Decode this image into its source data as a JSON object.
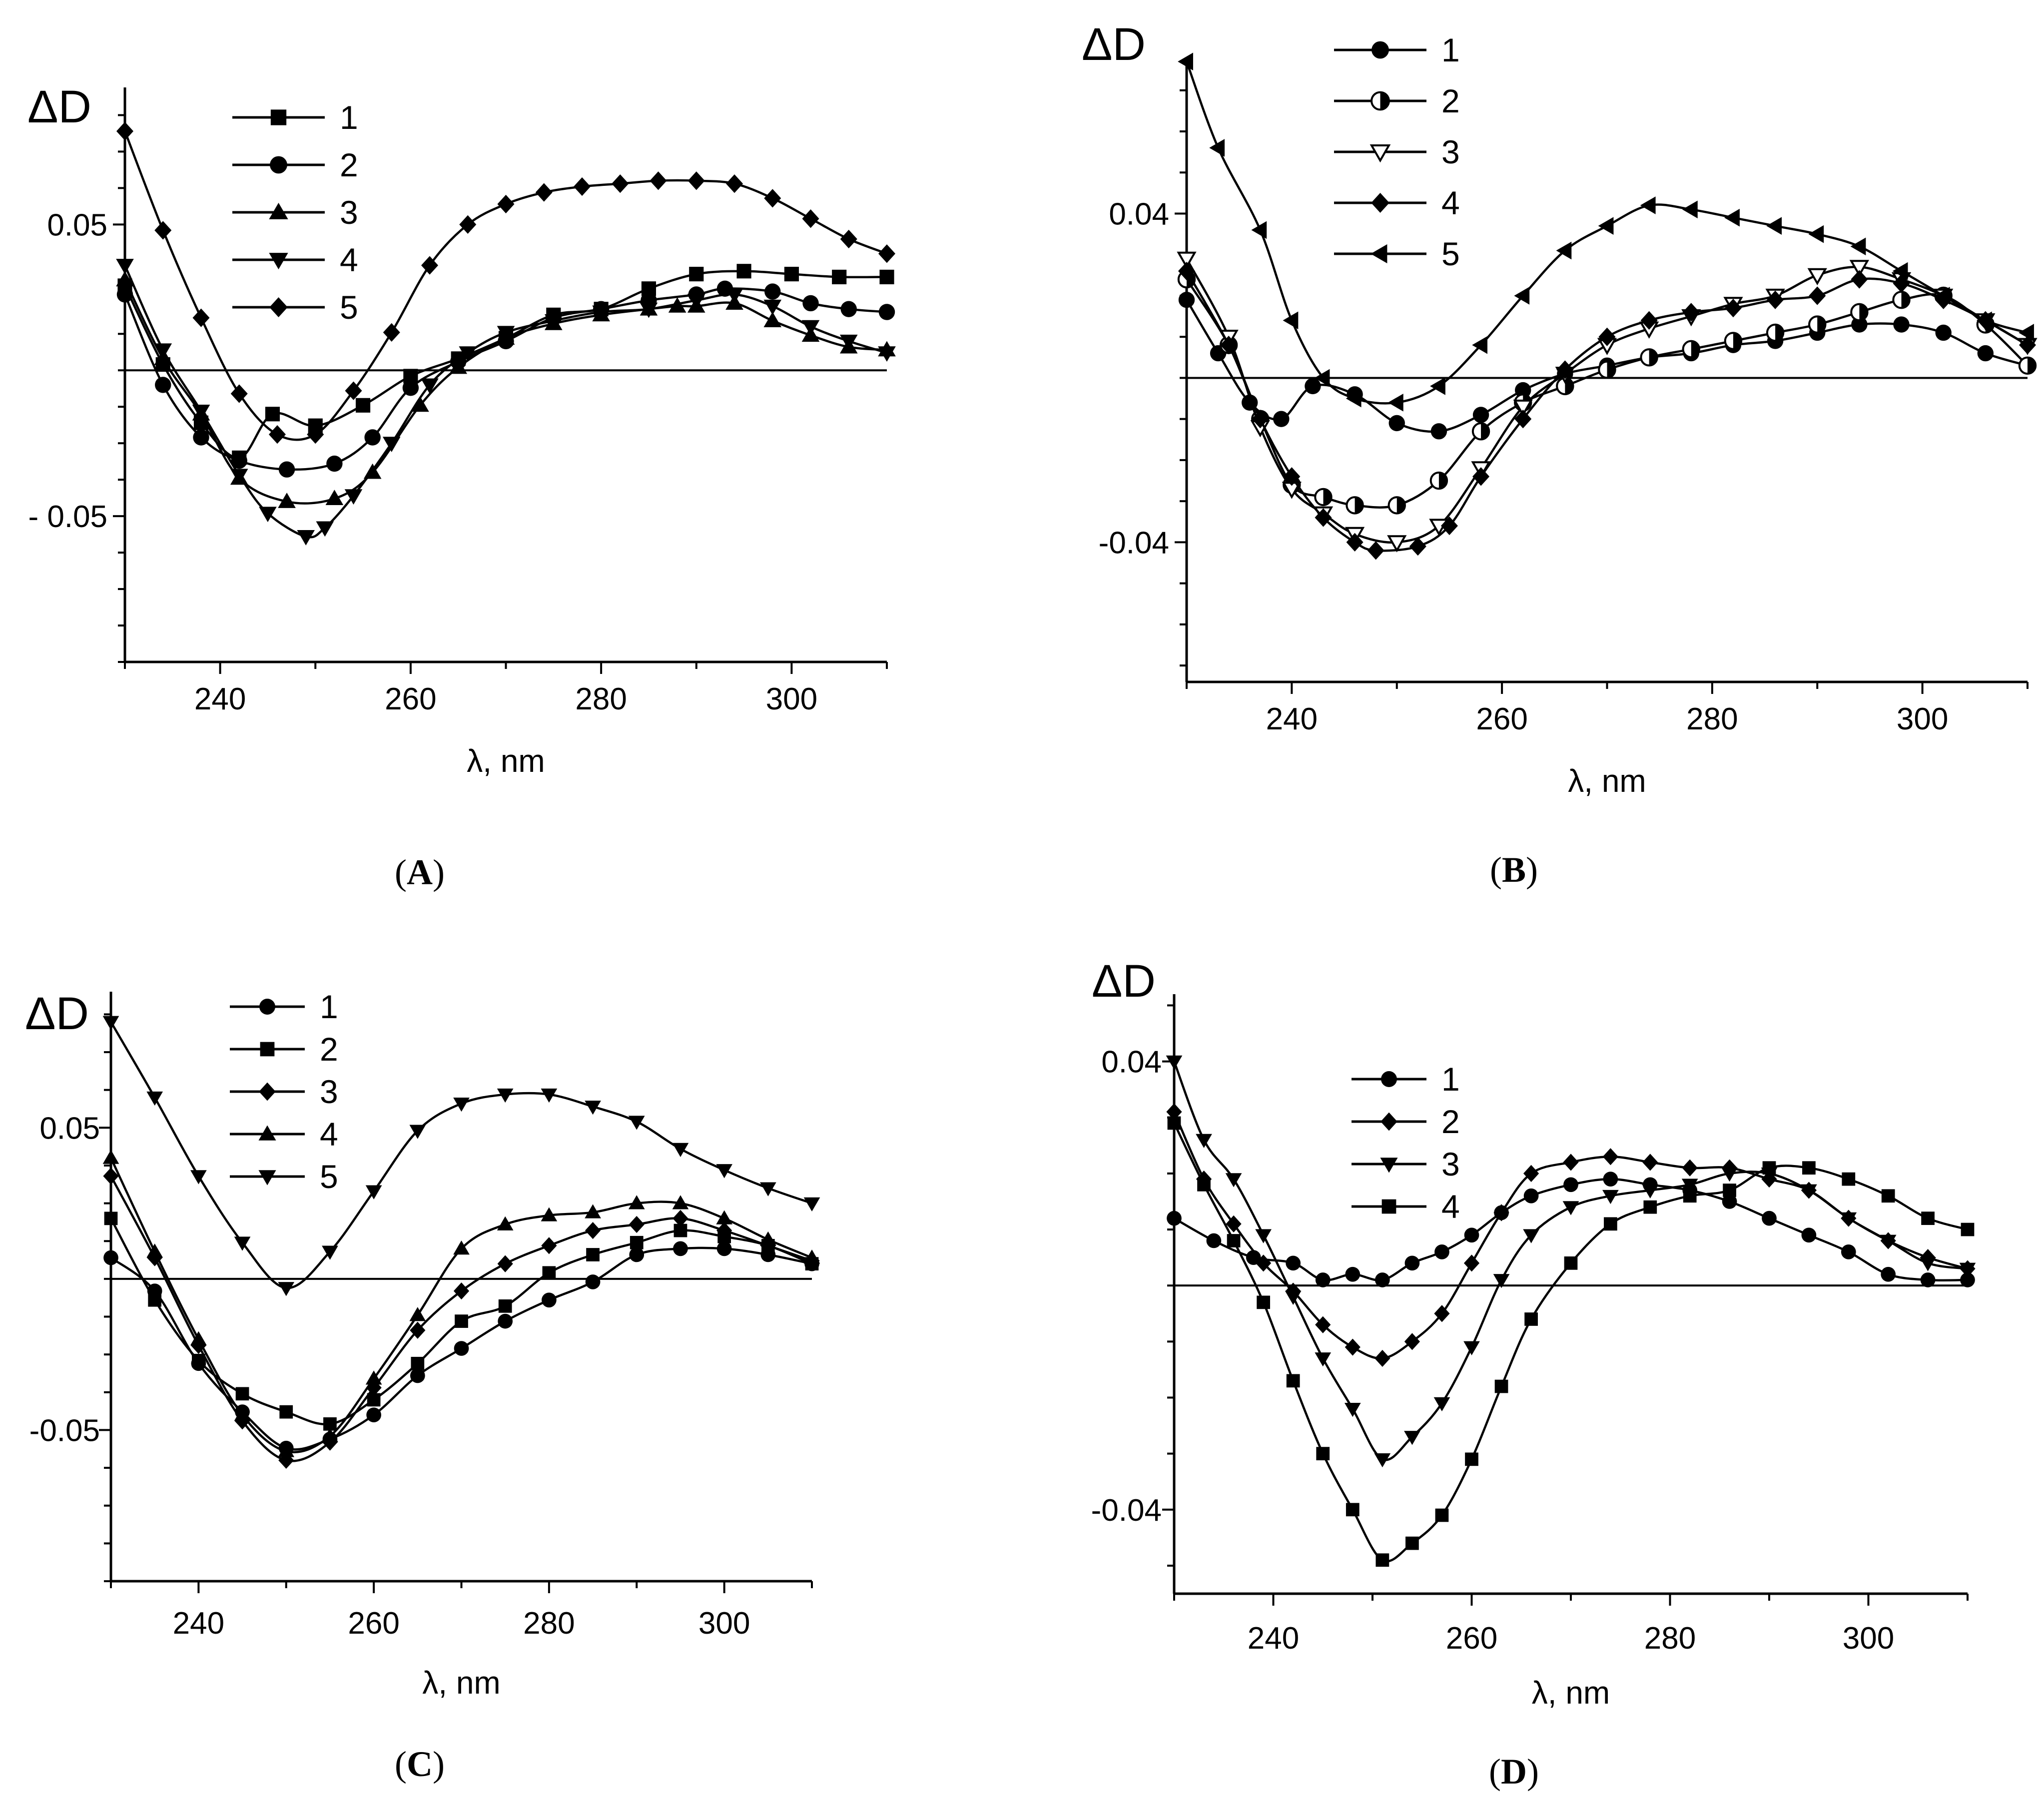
{
  "figure": {
    "colors": {
      "line": "#000000",
      "background": "#ffffff"
    }
  },
  "chart_data": [
    {
      "panel": "A",
      "caption": {
        "open": "(",
        "letter": "A",
        "close": ")"
      },
      "type": "line",
      "ylabel": "ΔD",
      "xlabel": "λ, nm",
      "xlim": [
        230,
        310
      ],
      "ylim": [
        -0.1,
        0.097
      ],
      "xticks": [
        240,
        260,
        280,
        300
      ],
      "yticks": [
        0.05,
        -0.05
      ],
      "ytick_labels": [
        "0.05",
        "- 0.05"
      ],
      "yminor_step": 0.0125,
      "baseline": 0,
      "legend": "top-left",
      "series": [
        {
          "name": "1",
          "marker": "square",
          "x": [
            230,
            234,
            238,
            242,
            245.5,
            250,
            255,
            260,
            265,
            270,
            275,
            280,
            285,
            290,
            295,
            300,
            305,
            310
          ],
          "y": [
            0.029,
            0.002,
            -0.018,
            -0.03,
            -0.015,
            -0.019,
            -0.012,
            -0.002,
            0.004,
            0.011,
            0.019,
            0.021,
            0.028,
            0.033,
            0.034,
            0.033,
            0.032,
            0.032
          ]
        },
        {
          "name": "2",
          "marker": "circle",
          "x": [
            230,
            234,
            238,
            242,
            247,
            252,
            256,
            260,
            265,
            270,
            275,
            280,
            285,
            290,
            293,
            298,
            302,
            306,
            310
          ],
          "y": [
            0.026,
            -0.005,
            -0.023,
            -0.031,
            -0.034,
            -0.032,
            -0.023,
            -0.006,
            0.003,
            0.01,
            0.018,
            0.021,
            0.024,
            0.026,
            0.028,
            0.027,
            0.023,
            0.021,
            0.02
          ]
        },
        {
          "name": "3",
          "marker": "triangle-up",
          "x": [
            230,
            234,
            238,
            242,
            247,
            252,
            256,
            261,
            265,
            270,
            275,
            280,
            285,
            288,
            290,
            294,
            298,
            302,
            306,
            310
          ],
          "y": [
            0.031,
            0.004,
            -0.015,
            -0.037,
            -0.045,
            -0.044,
            -0.035,
            -0.012,
            0.001,
            0.011,
            0.016,
            0.019,
            0.021,
            0.022,
            0.022,
            0.023,
            0.017,
            0.012,
            0.008,
            0.007
          ]
        },
        {
          "name": "4",
          "marker": "triangle-down",
          "x": [
            230,
            234,
            238,
            242,
            245,
            249,
            251,
            254,
            258,
            262,
            266,
            270,
            275,
            280,
            285,
            290,
            294,
            298,
            302,
            306,
            310
          ],
          "y": [
            0.036,
            0.007,
            -0.014,
            -0.036,
            -0.049,
            -0.057,
            -0.054,
            -0.043,
            -0.025,
            -0.005,
            0.006,
            0.013,
            0.017,
            0.02,
            0.021,
            0.024,
            0.026,
            0.022,
            0.015,
            0.01,
            0.006
          ]
        },
        {
          "name": "5",
          "marker": "diamond",
          "x": [
            230,
            234,
            238,
            242,
            246,
            250,
            254,
            258,
            262,
            266,
            270,
            274,
            278,
            282,
            286,
            290,
            294,
            298,
            302,
            306,
            310
          ],
          "y": [
            0.082,
            0.048,
            0.018,
            -0.008,
            -0.022,
            -0.022,
            -0.007,
            0.013,
            0.036,
            0.05,
            0.057,
            0.061,
            0.063,
            0.064,
            0.065,
            0.065,
            0.064,
            0.059,
            0.052,
            0.045,
            0.04
          ]
        }
      ]
    },
    {
      "panel": "B",
      "caption": {
        "open": "(",
        "letter": "B",
        "close": ")"
      },
      "type": "line",
      "ylabel": "ΔD",
      "xlabel": "λ, nm",
      "xlim": [
        230,
        310
      ],
      "ylim": [
        -0.074,
        0.078
      ],
      "xticks": [
        240,
        260,
        280,
        300
      ],
      "yticks": [
        0.04,
        -0.04
      ],
      "ytick_labels": [
        "0.04",
        "-0.04"
      ],
      "yminor_step": 0.01,
      "baseline": 0,
      "legend": "top-center",
      "series": [
        {
          "name": "1",
          "marker": "circle",
          "x": [
            230,
            233,
            236,
            239,
            242,
            246,
            250,
            254,
            258,
            262,
            266,
            270,
            274,
            278,
            282,
            286,
            290,
            294,
            298,
            302,
            306,
            310
          ],
          "y": [
            0.019,
            0.006,
            -0.006,
            -0.01,
            -0.002,
            -0.004,
            -0.011,
            -0.013,
            -0.009,
            -0.003,
            0.001,
            0.003,
            0.005,
            0.006,
            0.008,
            0.009,
            0.011,
            0.013,
            0.013,
            0.011,
            0.006,
            0.003
          ]
        },
        {
          "name": "2",
          "marker": "circle-half",
          "x": [
            230,
            234,
            237,
            240,
            243,
            246,
            250,
            254,
            258,
            262,
            266,
            270,
            274,
            278,
            282,
            286,
            290,
            294,
            298,
            302,
            306,
            310
          ],
          "y": [
            0.024,
            0.008,
            -0.01,
            -0.026,
            -0.029,
            -0.031,
            -0.031,
            -0.025,
            -0.013,
            -0.006,
            -0.002,
            0.002,
            0.005,
            0.007,
            0.009,
            0.011,
            0.013,
            0.016,
            0.019,
            0.02,
            0.013,
            0.003
          ]
        },
        {
          "name": "3",
          "marker": "triangle-down-open",
          "x": [
            230,
            234,
            237,
            240,
            243,
            246,
            250,
            254,
            258,
            262,
            266,
            270,
            274,
            278,
            282,
            286,
            290,
            294,
            298,
            302,
            306,
            310
          ],
          "y": [
            0.029,
            0.01,
            -0.012,
            -0.027,
            -0.033,
            -0.038,
            -0.04,
            -0.036,
            -0.022,
            -0.007,
            0.001,
            0.008,
            0.012,
            0.015,
            0.018,
            0.02,
            0.025,
            0.027,
            0.024,
            0.02,
            0.014,
            0.008
          ]
        },
        {
          "name": "4",
          "marker": "diamond",
          "x": [
            230,
            234,
            237,
            240,
            243,
            246,
            248,
            252,
            255,
            258,
            262,
            266,
            270,
            274,
            278,
            282,
            286,
            290,
            294,
            298,
            302,
            306,
            310
          ],
          "y": [
            0.026,
            0.008,
            -0.01,
            -0.024,
            -0.034,
            -0.04,
            -0.042,
            -0.041,
            -0.036,
            -0.024,
            -0.01,
            0.002,
            0.01,
            0.014,
            0.016,
            0.017,
            0.019,
            0.02,
            0.024,
            0.023,
            0.019,
            0.014,
            0.008
          ]
        },
        {
          "name": "5",
          "marker": "triangle-left",
          "x": [
            230,
            233,
            237,
            240,
            243,
            246,
            250,
            254,
            258,
            262,
            266,
            270,
            274,
            278,
            282,
            286,
            290,
            294,
            298,
            302,
            306,
            310
          ],
          "y": [
            0.077,
            0.056,
            0.036,
            0.014,
            0.0,
            -0.005,
            -0.006,
            -0.002,
            0.008,
            0.02,
            0.031,
            0.037,
            0.042,
            0.041,
            0.039,
            0.037,
            0.035,
            0.032,
            0.026,
            0.02,
            0.014,
            0.011
          ]
        }
      ]
    },
    {
      "panel": "C",
      "caption": {
        "open": "(",
        "letter": "C",
        "close": ")"
      },
      "type": "line",
      "ylabel": "ΔD",
      "xlabel": "λ, nm",
      "xlim": [
        230,
        310
      ],
      "ylim": [
        -0.1,
        0.095
      ],
      "xticks": [
        240,
        260,
        280,
        300
      ],
      "yticks": [
        0.05,
        -0.05
      ],
      "ytick_labels": [
        "0.05",
        "-0.05"
      ],
      "yminor_step": 0.0125,
      "baseline": 0,
      "legend": "top-center",
      "series": [
        {
          "name": "1",
          "marker": "circle",
          "x": [
            230,
            235,
            240,
            245,
            250,
            255,
            260,
            265,
            270,
            275,
            280,
            285,
            290,
            295,
            300,
            305,
            310
          ],
          "y": [
            0.007,
            -0.004,
            -0.028,
            -0.044,
            -0.056,
            -0.053,
            -0.045,
            -0.032,
            -0.023,
            -0.014,
            -0.007,
            -0.001,
            0.008,
            0.01,
            0.01,
            0.008,
            0.005
          ]
        },
        {
          "name": "2",
          "marker": "square",
          "x": [
            230,
            235,
            240,
            245,
            250,
            255,
            260,
            265,
            270,
            275,
            280,
            285,
            290,
            295,
            300,
            305,
            310
          ],
          "y": [
            0.02,
            -0.007,
            -0.027,
            -0.038,
            -0.044,
            -0.048,
            -0.04,
            -0.028,
            -0.014,
            -0.009,
            0.002,
            0.008,
            0.012,
            0.016,
            0.014,
            0.011,
            0.005
          ]
        },
        {
          "name": "3",
          "marker": "diamond",
          "x": [
            230,
            235,
            240,
            245,
            250,
            255,
            260,
            265,
            270,
            275,
            280,
            285,
            290,
            295,
            300,
            305,
            310
          ],
          "y": [
            0.034,
            0.007,
            -0.022,
            -0.047,
            -0.06,
            -0.054,
            -0.036,
            -0.017,
            -0.004,
            0.005,
            0.011,
            0.016,
            0.018,
            0.02,
            0.016,
            0.011,
            0.006
          ]
        },
        {
          "name": "4",
          "marker": "triangle-up",
          "x": [
            230,
            235,
            240,
            245,
            250,
            255,
            260,
            265,
            270,
            275,
            280,
            285,
            290,
            295,
            300,
            305,
            310
          ],
          "y": [
            0.04,
            0.009,
            -0.02,
            -0.045,
            -0.057,
            -0.052,
            -0.033,
            -0.012,
            0.01,
            0.018,
            0.021,
            0.022,
            0.025,
            0.025,
            0.02,
            0.013,
            0.007
          ]
        },
        {
          "name": "5",
          "marker": "triangle-down",
          "x": [
            230,
            235,
            240,
            245,
            250,
            255,
            260,
            265,
            270,
            275,
            280,
            285,
            290,
            295,
            300,
            305,
            310
          ],
          "y": [
            0.085,
            0.06,
            0.034,
            0.012,
            -0.003,
            0.009,
            0.029,
            0.049,
            0.058,
            0.061,
            0.061,
            0.057,
            0.052,
            0.043,
            0.036,
            0.03,
            0.025
          ]
        }
      ]
    },
    {
      "panel": "D",
      "caption": {
        "open": "(",
        "letter": "D",
        "close": ")"
      },
      "type": "line",
      "ylabel": "ΔD",
      "xlabel": "λ, nm",
      "xlim": [
        230,
        310
      ],
      "ylim": [
        -0.055,
        0.052
      ],
      "xticks": [
        240,
        260,
        280,
        300
      ],
      "yticks": [
        0.04,
        -0.04
      ],
      "ytick_labels": [
        "0.04",
        "-0.04"
      ],
      "yminor_step": 0.01,
      "baseline": 0,
      "legend": "top-center",
      "series": [
        {
          "name": "1",
          "marker": "circle",
          "x": [
            230,
            234,
            238,
            242,
            245,
            248,
            251,
            254,
            257,
            260,
            263,
            266,
            270,
            274,
            278,
            282,
            286,
            290,
            294,
            298,
            302,
            306,
            310
          ],
          "y": [
            0.012,
            0.008,
            0.005,
            0.004,
            0.001,
            0.002,
            0.001,
            0.004,
            0.006,
            0.009,
            0.013,
            0.016,
            0.018,
            0.019,
            0.018,
            0.017,
            0.015,
            0.012,
            0.009,
            0.006,
            0.002,
            0.001,
            0.001
          ]
        },
        {
          "name": "2",
          "marker": "diamond",
          "x": [
            230,
            233,
            236,
            239,
            242,
            245,
            248,
            251,
            254,
            257,
            260,
            263,
            266,
            270,
            274,
            278,
            282,
            286,
            290,
            294,
            298,
            302,
            306,
            310
          ],
          "y": [
            0.031,
            0.019,
            0.011,
            0.004,
            -0.001,
            -0.007,
            -0.011,
            -0.013,
            -0.01,
            -0.005,
            0.004,
            0.013,
            0.02,
            0.022,
            0.023,
            0.022,
            0.021,
            0.021,
            0.019,
            0.017,
            0.012,
            0.008,
            0.005,
            0.003
          ]
        },
        {
          "name": "3",
          "marker": "triangle-down",
          "x": [
            230,
            233,
            236,
            239,
            242,
            245,
            248,
            251,
            254,
            257,
            260,
            263,
            266,
            270,
            274,
            278,
            282,
            286,
            290,
            294,
            298,
            302,
            306,
            310
          ],
          "y": [
            0.04,
            0.026,
            0.019,
            0.009,
            -0.002,
            -0.013,
            -0.022,
            -0.031,
            -0.027,
            -0.021,
            -0.011,
            0.001,
            0.009,
            0.014,
            0.016,
            0.017,
            0.018,
            0.02,
            0.02,
            0.017,
            0.012,
            0.008,
            0.004,
            0.003
          ]
        },
        {
          "name": "4",
          "marker": "square",
          "x": [
            230,
            233,
            236,
            239,
            242,
            245,
            248,
            251,
            254,
            257,
            260,
            263,
            266,
            270,
            274,
            278,
            282,
            286,
            290,
            294,
            298,
            302,
            306,
            310
          ],
          "y": [
            0.029,
            0.018,
            0.008,
            -0.003,
            -0.017,
            -0.03,
            -0.04,
            -0.049,
            -0.046,
            -0.041,
            -0.031,
            -0.018,
            -0.006,
            0.004,
            0.011,
            0.014,
            0.016,
            0.017,
            0.021,
            0.021,
            0.019,
            0.016,
            0.012,
            0.01
          ]
        }
      ]
    }
  ]
}
